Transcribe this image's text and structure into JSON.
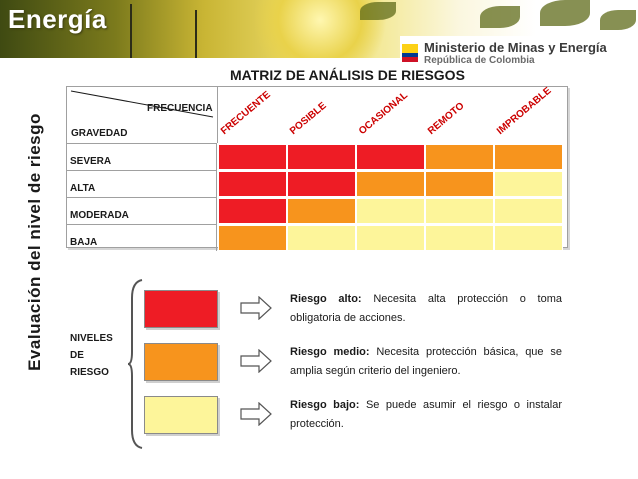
{
  "header": {
    "brand": "Energía",
    "ministry": "Ministerio de Minas y Energía",
    "country": "República de Colombia"
  },
  "side_title": "Evaluación del nivel de riesgo",
  "matrix": {
    "title": "MATRIZ DE ANÁLISIS DE RIESGOS",
    "frequency_label": "FRECUENCIA",
    "gravity_label": "GRAVEDAD",
    "columns": [
      "FRECUENTE",
      "POSIBLE",
      "OCASIONAL",
      "REMOTO",
      "IMPROBABLE"
    ],
    "rows": [
      {
        "label": "SEVERA",
        "levels": [
          "alto",
          "alto",
          "alto",
          "medio",
          "medio"
        ]
      },
      {
        "label": "ALTA",
        "levels": [
          "alto",
          "alto",
          "medio",
          "medio",
          "bajo"
        ]
      },
      {
        "label": "MODERADA",
        "levels": [
          "alto",
          "medio",
          "bajo",
          "bajo",
          "bajo"
        ]
      },
      {
        "label": "BAJA",
        "levels": [
          "medio",
          "bajo",
          "bajo",
          "bajo",
          "bajo"
        ]
      }
    ]
  },
  "colors": {
    "alto": "#ee1c25",
    "medio": "#f7941d",
    "bajo": "#fdf59a",
    "column_text": "#cc0000"
  },
  "legend": {
    "group_label": [
      "NIVELES",
      "DE",
      "RIESGO"
    ],
    "items": [
      {
        "level": "alto",
        "title": "Riesgo alto:",
        "text": "Necesita alta protección o toma obligatoria de acciones."
      },
      {
        "level": "medio",
        "title": "Riesgo medio:",
        "text": "Necesita protección básica, que se amplia según criterio del ingeniero."
      },
      {
        "level": "bajo",
        "title": "Riesgo bajo:",
        "text": "Se puede asumir el riesgo o instalar protección."
      }
    ]
  }
}
